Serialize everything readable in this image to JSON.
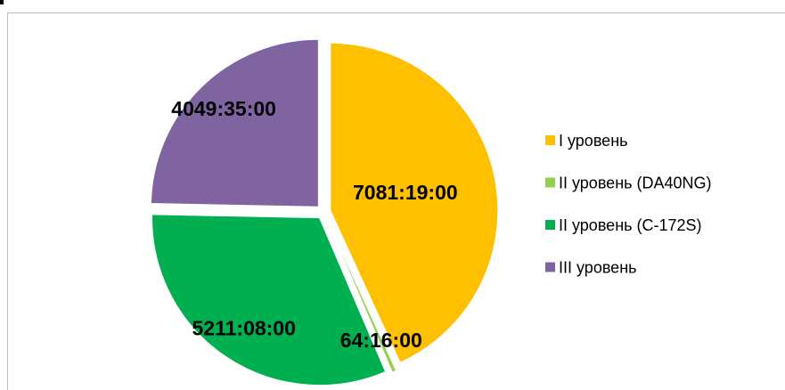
{
  "chart_data": {
    "type": "pie",
    "categories": [
      "I уровень",
      "II уровень (DA40NG)",
      "II уровень (C-172S)",
      "III уровень"
    ],
    "values": [
      7081.3167,
      64.2667,
      5211.1333,
      4049.5833
    ],
    "value_labels": [
      "7081:19:00",
      "64:16:00",
      "5211:08:00",
      "4049:35:00"
    ],
    "colors": [
      "#ffc000",
      "#92d050",
      "#00b050",
      "#8064a2"
    ],
    "legend": "right"
  }
}
